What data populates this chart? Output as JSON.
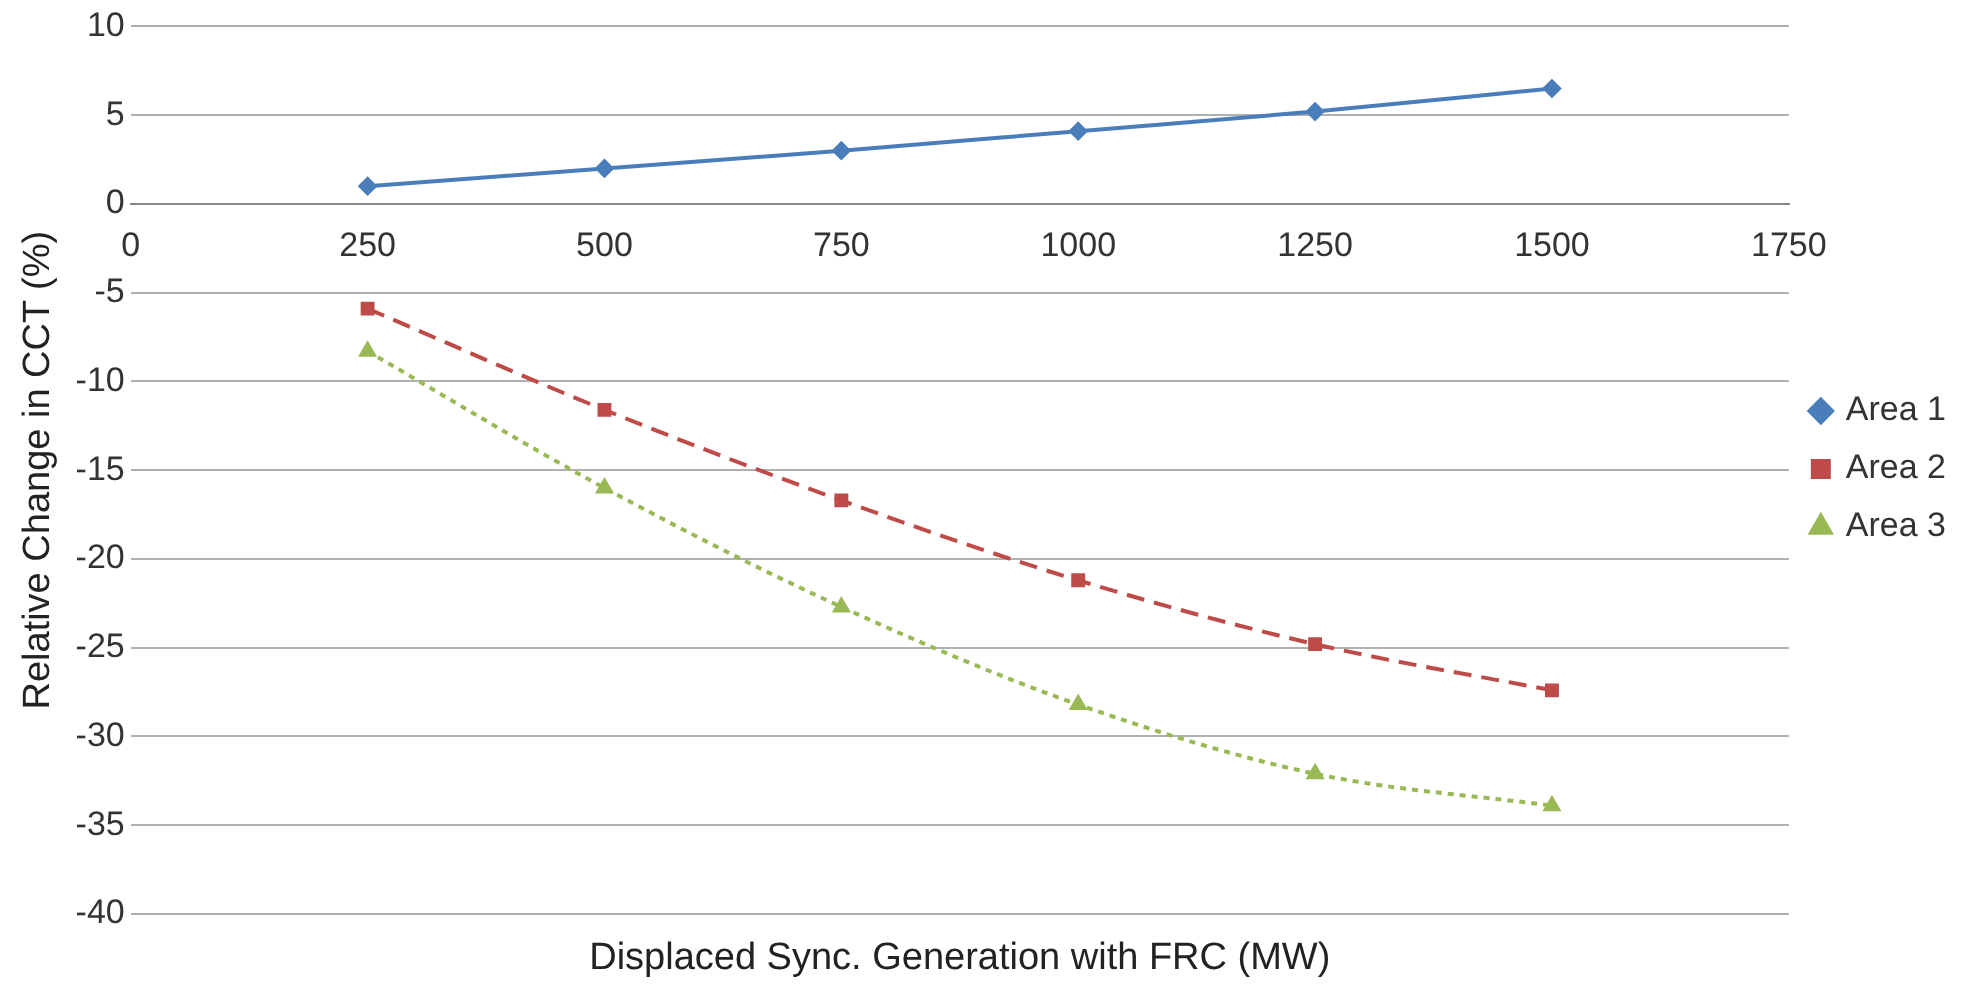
{
  "chart_data": {
    "type": "line",
    "xlabel": "Displaced Sync. Generation with FRC (MW)",
    "ylabel": "Relative Change in CCT (%)",
    "x": [
      250,
      500,
      750,
      1000,
      1250,
      1500
    ],
    "series": [
      {
        "name": "Area 1",
        "color": "#4a7ebb",
        "values": [
          1.0,
          2.0,
          3.0,
          4.1,
          5.2,
          6.5
        ],
        "marker": "diamond",
        "line_style": "solid"
      },
      {
        "name": "Area 2",
        "color": "#be4b48",
        "values": [
          -5.9,
          -11.6,
          -16.7,
          -21.2,
          -24.8,
          -27.4
        ],
        "marker": "square",
        "line_style": "dashed"
      },
      {
        "name": "Area 3",
        "color": "#98b954",
        "values": [
          -8.3,
          -16.0,
          -22.7,
          -28.2,
          -32.1,
          -33.9
        ],
        "marker": "triangle",
        "line_style": "dotted"
      }
    ],
    "xlim": [
      0,
      1750
    ],
    "xticks": [
      0,
      250,
      500,
      750,
      1000,
      1250,
      1500,
      1750
    ],
    "ylim": [
      -40,
      10
    ],
    "yticks": [
      -40,
      -35,
      -30,
      -25,
      -20,
      -15,
      -10,
      -5,
      0,
      5,
      10
    ],
    "grid": "y",
    "legend": "right"
  }
}
